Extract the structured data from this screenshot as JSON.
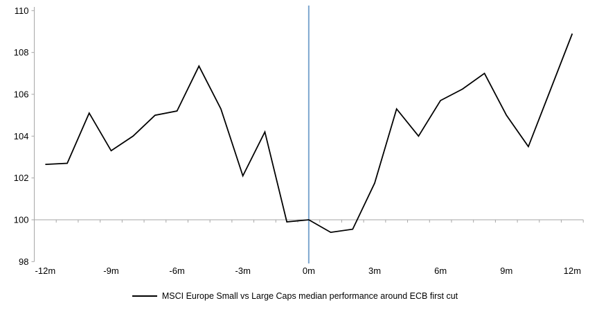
{
  "chart_data": {
    "type": "line",
    "title": "",
    "x": [
      -12,
      -11,
      -10,
      -9,
      -8,
      -7,
      -6,
      -5,
      -4,
      -3,
      -2,
      -1,
      0,
      1,
      2,
      3,
      4,
      5,
      6,
      7,
      8,
      9,
      10,
      11,
      12
    ],
    "series": [
      {
        "name": "MSCI Europe Small vs Large Caps median performance around ECB first cut",
        "color": "#000000",
        "values": [
          102.65,
          102.7,
          105.1,
          103.3,
          104.0,
          105.0,
          105.2,
          107.35,
          105.3,
          102.1,
          104.2,
          99.9,
          100.0,
          99.4,
          99.55,
          101.75,
          105.3,
          104.0,
          105.7,
          106.25,
          107.0,
          105.0,
          103.5,
          106.2,
          108.9
        ]
      }
    ],
    "ylim": [
      98,
      110
    ],
    "y_ticks": [
      98,
      100,
      102,
      104,
      106,
      108,
      110
    ],
    "x_tick_step": 3,
    "x_tick_labels": [
      "-12m",
      "-9m",
      "-6m",
      "-3m",
      "0m",
      "3m",
      "6m",
      "9m",
      "12m"
    ],
    "baseline": {
      "y": 100,
      "color": "#a6a6a6"
    },
    "event_line": {
      "x": 0,
      "color": "#7da6cf"
    },
    "axis_color": "#a6a6a6",
    "grid": "off",
    "legend_position": "bottom"
  },
  "legend": {
    "label": "MSCI Europe Small vs Large Caps median performance around ECB first cut"
  }
}
